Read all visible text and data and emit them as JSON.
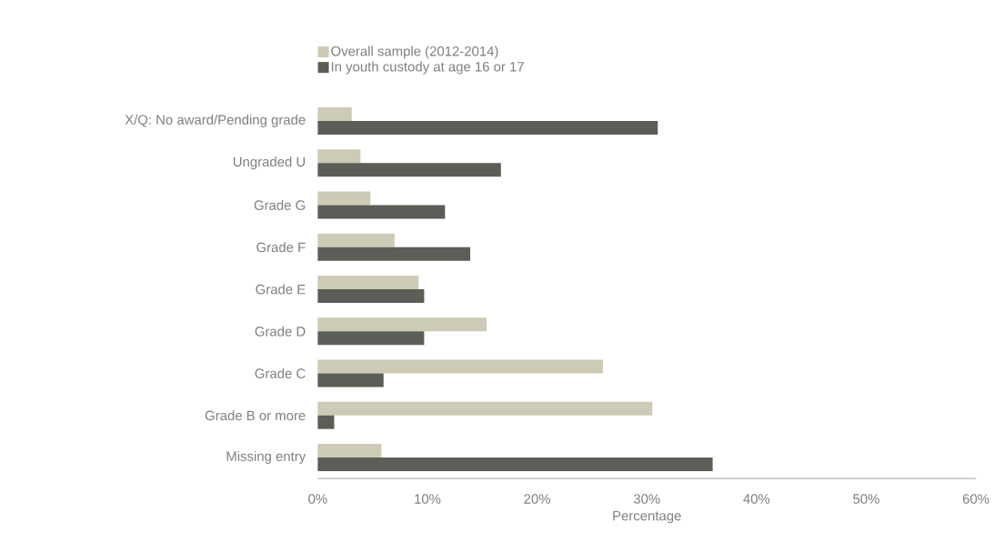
{
  "chart_data": {
    "type": "bar",
    "orientation": "horizontal",
    "xlabel": "Percentage",
    "categories": [
      "X/Q: No award/Pending grade",
      "Ungraded U",
      "Grade G",
      "Grade F",
      "Grade E",
      "Grade D",
      "Grade C",
      "Grade B or more",
      "Missing entry"
    ],
    "series": [
      {
        "name": "Overall sample (2012-2014)",
        "color": "#cdcbb5",
        "values": [
          3.1,
          3.9,
          4.8,
          7.0,
          9.2,
          15.4,
          26.0,
          30.5,
          5.8
        ]
      },
      {
        "name": "In youth custody at age 16 or 17",
        "color": "#5a5e56",
        "values": [
          31.0,
          16.7,
          11.6,
          13.9,
          9.7,
          9.7,
          6.0,
          1.5,
          36.0
        ]
      }
    ],
    "xlim": [
      0,
      60
    ],
    "xticks": [
      {
        "value": 0,
        "label": "0%"
      },
      {
        "value": 10,
        "label": "10%"
      },
      {
        "value": 20,
        "label": "20%"
      },
      {
        "value": 30,
        "label": "30%"
      },
      {
        "value": 40,
        "label": "40%"
      },
      {
        "value": 50,
        "label": "50%"
      },
      {
        "value": 60,
        "label": "60%"
      }
    ],
    "legend": "top left"
  }
}
